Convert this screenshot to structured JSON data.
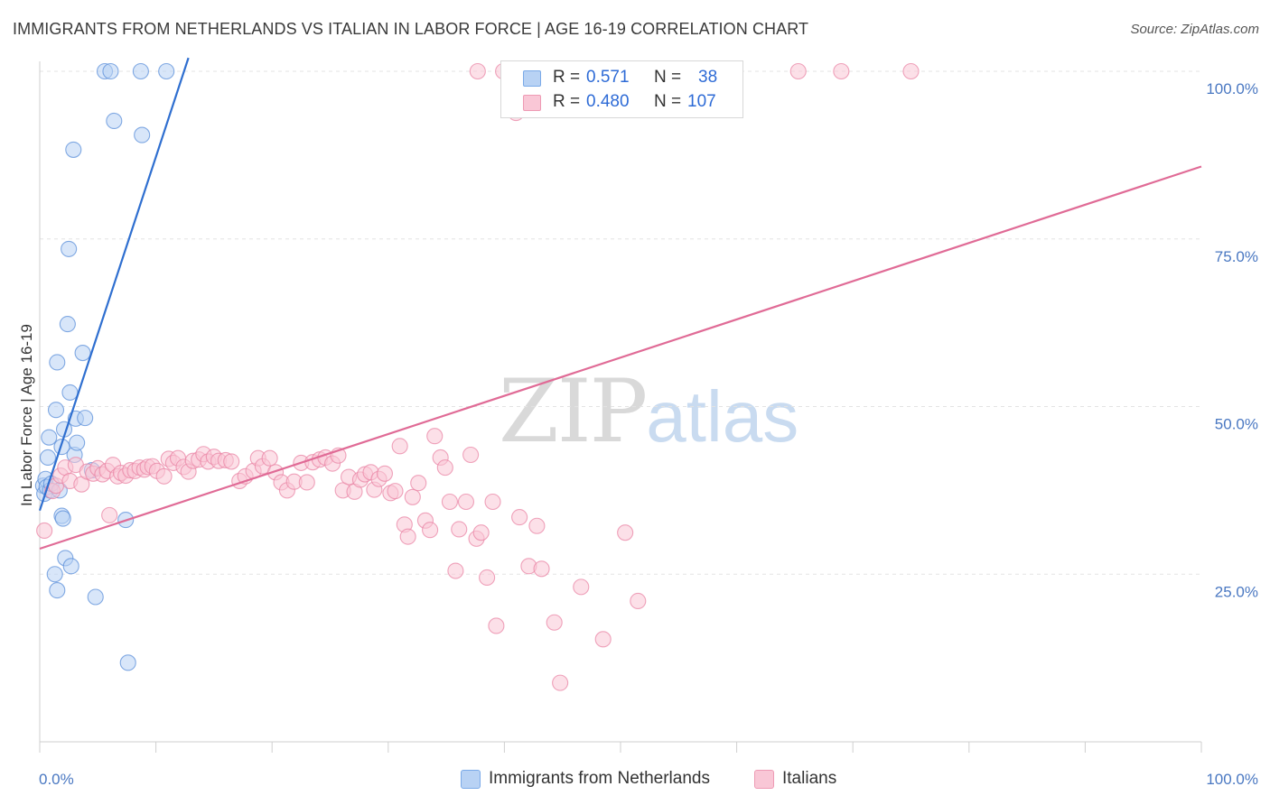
{
  "title": "IMMIGRANTS FROM NETHERLANDS VS ITALIAN IN LABOR FORCE | AGE 16-19 CORRELATION CHART",
  "source": "Source: ZipAtlas.com",
  "watermark": {
    "zip": "ZIP",
    "atlas": "atlas"
  },
  "legend": {
    "rows": [
      {
        "r_label": "R =",
        "r_value": "0.571",
        "n_label": "N =",
        "n_value": "38",
        "color": "#7aaae8",
        "fill": "#b8d2f4"
      },
      {
        "r_label": "R =",
        "r_value": "0.480",
        "n_label": "N =",
        "n_value": "107",
        "color": "#ee9ab4",
        "fill": "#f9c7d6"
      }
    ]
  },
  "bottom_legend": [
    {
      "label": "Immigrants from Netherlands",
      "color": "#7aaae8",
      "fill": "#b8d2f4"
    },
    {
      "label": "Italians",
      "color": "#ee9ab4",
      "fill": "#f9c7d6"
    }
  ],
  "chart_data": {
    "type": "scatter",
    "title": "IMMIGRANTS FROM NETHERLANDS VS ITALIAN IN LABOR FORCE | AGE 16-19 CORRELATION CHART",
    "xlabel": "",
    "ylabel": "In Labor Force | Age 16-19",
    "xlim": [
      0,
      100
    ],
    "ylim": [
      0,
      102
    ],
    "x_tick_labels": [
      "0.0%",
      "100.0%"
    ],
    "y_ticks": [
      25,
      50,
      75,
      100
    ],
    "y_tick_labels": [
      "25.0%",
      "50.0%",
      "75.0%",
      "100.0%"
    ],
    "grid": "horizontal dashed",
    "legend_placement": "top-center",
    "series": [
      {
        "name": "Immigrants from Netherlands",
        "color": "#5b8fd9",
        "fill": "#b8d2f4",
        "line_color": "#2f6fd0",
        "trend": {
          "x0": 0.0,
          "y0": 34.5,
          "x1": 12.8,
          "y1": 102.0
        },
        "points": [
          [
            0.3,
            38.2
          ],
          [
            0.4,
            37.0
          ],
          [
            0.5,
            39.2
          ],
          [
            0.6,
            38.0
          ],
          [
            0.7,
            42.4
          ],
          [
            0.8,
            45.4
          ],
          [
            0.9,
            37.5
          ],
          [
            1.0,
            38.5
          ],
          [
            1.3,
            25.0
          ],
          [
            1.4,
            49.5
          ],
          [
            1.5,
            56.6
          ],
          [
            1.5,
            22.6
          ],
          [
            1.7,
            37.5
          ],
          [
            1.9,
            33.7
          ],
          [
            1.9,
            44.0
          ],
          [
            2.0,
            33.3
          ],
          [
            2.1,
            46.6
          ],
          [
            2.2,
            27.4
          ],
          [
            2.4,
            62.3
          ],
          [
            2.5,
            73.5
          ],
          [
            2.6,
            52.1
          ],
          [
            2.7,
            26.2
          ],
          [
            2.9,
            88.3
          ],
          [
            3.0,
            42.8
          ],
          [
            3.1,
            48.2
          ],
          [
            3.2,
            44.6
          ],
          [
            3.7,
            58.0
          ],
          [
            3.9,
            48.3
          ],
          [
            4.5,
            40.5
          ],
          [
            4.8,
            21.6
          ],
          [
            5.6,
            100.0
          ],
          [
            6.1,
            100.0
          ],
          [
            6.4,
            92.6
          ],
          [
            7.4,
            33.1
          ],
          [
            7.6,
            11.8
          ],
          [
            8.7,
            100.0
          ],
          [
            8.8,
            90.5
          ],
          [
            10.9,
            100.0
          ]
        ]
      },
      {
        "name": "Italians",
        "color": "#e985a5",
        "fill": "#f9c7d6",
        "line_color": "#e06b96",
        "trend": {
          "x0": 0.0,
          "y0": 28.8,
          "x1": 100.0,
          "y1": 85.8
        },
        "points": [
          [
            0.4,
            31.5
          ],
          [
            1.1,
            37.4
          ],
          [
            1.4,
            38.2
          ],
          [
            1.8,
            39.7
          ],
          [
            2.2,
            40.9
          ],
          [
            2.6,
            38.9
          ],
          [
            3.1,
            41.3
          ],
          [
            3.6,
            38.4
          ],
          [
            4.1,
            40.3
          ],
          [
            4.6,
            40.0
          ],
          [
            5.0,
            40.8
          ],
          [
            5.4,
            39.9
          ],
          [
            5.8,
            40.4
          ],
          [
            6.0,
            33.8
          ],
          [
            6.3,
            41.3
          ],
          [
            6.7,
            39.6
          ],
          [
            7.0,
            40.1
          ],
          [
            7.4,
            39.7
          ],
          [
            7.8,
            40.5
          ],
          [
            8.2,
            40.4
          ],
          [
            8.6,
            40.9
          ],
          [
            9.0,
            40.6
          ],
          [
            9.3,
            41.0
          ],
          [
            9.7,
            41.1
          ],
          [
            10.1,
            40.4
          ],
          [
            10.7,
            39.6
          ],
          [
            11.1,
            42.2
          ],
          [
            11.5,
            41.6
          ],
          [
            11.9,
            42.3
          ],
          [
            12.4,
            41.0
          ],
          [
            12.8,
            40.3
          ],
          [
            13.2,
            41.9
          ],
          [
            13.7,
            42.1
          ],
          [
            14.1,
            42.9
          ],
          [
            14.5,
            41.8
          ],
          [
            15.0,
            42.5
          ],
          [
            15.4,
            41.9
          ],
          [
            16.0,
            42.0
          ],
          [
            16.5,
            41.8
          ],
          [
            17.2,
            38.9
          ],
          [
            17.7,
            39.6
          ],
          [
            18.4,
            40.4
          ],
          [
            18.8,
            42.3
          ],
          [
            19.2,
            41.1
          ],
          [
            19.8,
            42.3
          ],
          [
            20.3,
            40.2
          ],
          [
            20.8,
            38.7
          ],
          [
            21.3,
            37.5
          ],
          [
            21.9,
            38.8
          ],
          [
            22.5,
            41.6
          ],
          [
            23.0,
            38.7
          ],
          [
            23.5,
            41.7
          ],
          [
            24.1,
            42.1
          ],
          [
            24.6,
            42.4
          ],
          [
            25.2,
            41.5
          ],
          [
            25.7,
            42.7
          ],
          [
            26.1,
            37.5
          ],
          [
            26.6,
            39.5
          ],
          [
            27.1,
            37.3
          ],
          [
            27.6,
            39.1
          ],
          [
            28.0,
            39.9
          ],
          [
            28.5,
            40.2
          ],
          [
            28.8,
            37.6
          ],
          [
            29.2,
            39.2
          ],
          [
            29.7,
            40.0
          ],
          [
            30.2,
            37.1
          ],
          [
            30.6,
            37.4
          ],
          [
            31.0,
            44.1
          ],
          [
            31.4,
            32.4
          ],
          [
            31.7,
            30.6
          ],
          [
            32.1,
            36.5
          ],
          [
            32.6,
            38.6
          ],
          [
            33.2,
            33.0
          ],
          [
            33.6,
            31.6
          ],
          [
            34.0,
            45.6
          ],
          [
            34.5,
            42.4
          ],
          [
            34.9,
            40.9
          ],
          [
            35.3,
            35.8
          ],
          [
            35.8,
            25.5
          ],
          [
            36.1,
            31.7
          ],
          [
            36.7,
            35.8
          ],
          [
            37.1,
            42.8
          ],
          [
            37.6,
            30.3
          ],
          [
            38.0,
            31.2
          ],
          [
            38.5,
            24.5
          ],
          [
            39.0,
            35.8
          ],
          [
            39.3,
            17.3
          ],
          [
            41.3,
            33.5
          ],
          [
            42.1,
            26.2
          ],
          [
            42.8,
            32.2
          ],
          [
            43.2,
            25.8
          ],
          [
            44.3,
            17.8
          ],
          [
            44.8,
            8.8
          ],
          [
            46.6,
            23.1
          ],
          [
            48.5,
            15.3
          ],
          [
            50.4,
            31.2
          ],
          [
            51.5,
            21.0
          ],
          [
            55.6,
            100.0
          ],
          [
            59.1,
            100.0
          ],
          [
            65.3,
            100.0
          ],
          [
            69.0,
            100.0
          ],
          [
            75.0,
            100.0
          ],
          [
            37.7,
            100.0
          ],
          [
            40.5,
            100.0
          ],
          [
            41.2,
            100.0
          ],
          [
            39.9,
            100.0
          ],
          [
            41.0,
            93.8
          ]
        ]
      }
    ]
  }
}
